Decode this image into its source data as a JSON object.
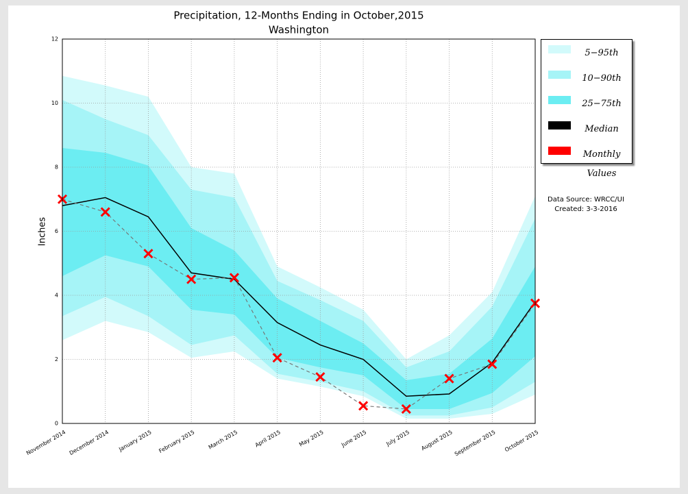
{
  "chart_data": {
    "type": "line",
    "title": "Precipitation, 12-Months Ending in October,2015",
    "subtitle": "Washington",
    "y_label": "Inches",
    "annotations": [
      "Data Source: WRCC/UI",
      "Created: 3-3-2016"
    ],
    "categories": [
      "November 2014",
      "December 2014",
      "January 2015",
      "February 2015",
      "March 2015",
      "April 2015",
      "May 2015",
      "June 2015",
      "July 2015",
      "August 2015",
      "September 2015",
      "October 2015"
    ],
    "ylim": [
      0,
      12
    ],
    "yticks": [
      0,
      2,
      4,
      6,
      8,
      10,
      12
    ],
    "grid": true,
    "legend": "upper right",
    "series": [
      {
        "name": "5−95th",
        "color": "#d2fafb",
        "low": [
          2.6,
          3.2,
          2.85,
          2.05,
          2.25,
          1.4,
          1.15,
          0.85,
          0.15,
          0.15,
          0.3,
          0.9
        ],
        "high": [
          10.85,
          10.55,
          10.2,
          8.0,
          7.8,
          4.9,
          4.25,
          3.55,
          2.0,
          2.75,
          4.1,
          7.1
        ]
      },
      {
        "name": "10−90th",
        "color": "#a6f4f7",
        "low": [
          3.35,
          3.95,
          3.35,
          2.45,
          2.75,
          1.55,
          1.3,
          1.0,
          0.25,
          0.25,
          0.5,
          1.3
        ],
        "high": [
          10.1,
          9.5,
          9.0,
          7.3,
          7.05,
          4.45,
          3.85,
          3.2,
          1.75,
          2.25,
          3.65,
          6.4
        ]
      },
      {
        "name": "25−75th",
        "color": "#6cedf2",
        "low": [
          4.6,
          5.25,
          4.9,
          3.55,
          3.4,
          2.05,
          1.75,
          1.5,
          0.45,
          0.45,
          0.95,
          2.1
        ],
        "high": [
          8.6,
          8.45,
          8.05,
          6.1,
          5.4,
          3.9,
          3.2,
          2.5,
          1.35,
          1.55,
          2.65,
          4.9
        ]
      },
      {
        "name": "Median",
        "color": "#000000",
        "values": [
          6.8,
          7.05,
          6.45,
          4.7,
          4.5,
          3.15,
          2.45,
          2.0,
          0.85,
          0.92,
          1.9,
          3.8
        ]
      },
      {
        "name": "Monthly Values",
        "color": "#ff0000",
        "values": [
          7.0,
          6.6,
          5.3,
          4.5,
          4.55,
          2.05,
          1.45,
          0.55,
          0.45,
          1.4,
          1.85,
          3.75
        ]
      }
    ]
  }
}
